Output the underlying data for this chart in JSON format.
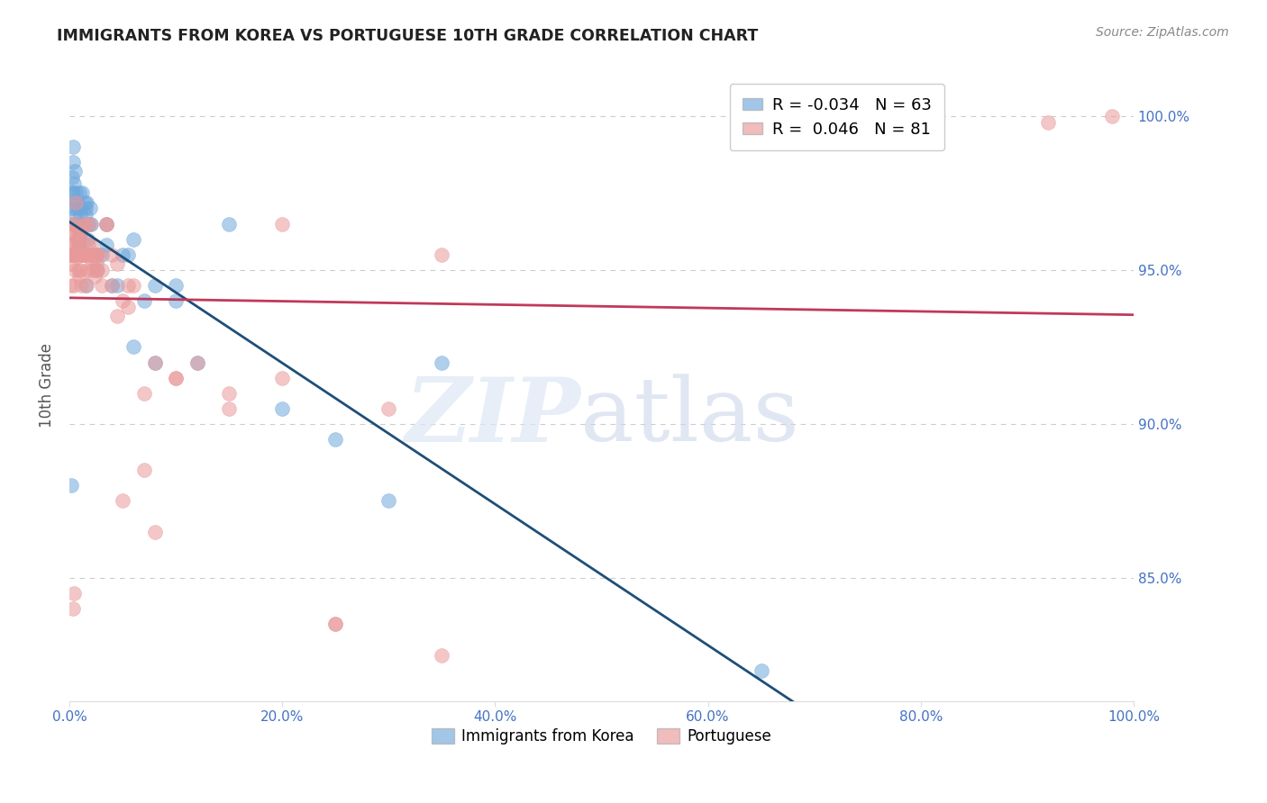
{
  "title": "IMMIGRANTS FROM KOREA VS PORTUGUESE 10TH GRADE CORRELATION CHART",
  "source": "Source: ZipAtlas.com",
  "ylabel": "10th Grade",
  "xlim": [
    0.0,
    100.0
  ],
  "ylim": [
    81.0,
    101.5
  ],
  "yticks": [
    85.0,
    90.0,
    95.0,
    100.0
  ],
  "ytick_labels": [
    "85.0%",
    "90.0%",
    "95.0%",
    "100.0%"
  ],
  "xticks": [
    0,
    20,
    40,
    60,
    80,
    100
  ],
  "xtick_labels": [
    "0.0%",
    "20.0%",
    "40.0%",
    "60.0%",
    "80.0%",
    "100.0%"
  ],
  "blue_R": "-0.034",
  "blue_N": "63",
  "pink_R": "0.046",
  "pink_N": "81",
  "blue_color": "#6fa8dc",
  "pink_color": "#ea9999",
  "blue_line_color": "#1f4e79",
  "pink_line_color": "#c0395a",
  "axis_label_color": "#4472c4",
  "blue_x": [
    0.1,
    0.15,
    0.2,
    0.25,
    0.3,
    0.3,
    0.35,
    0.4,
    0.4,
    0.5,
    0.5,
    0.6,
    0.6,
    0.7,
    0.7,
    0.8,
    0.8,
    0.9,
    0.9,
    1.0,
    1.0,
    1.1,
    1.1,
    1.2,
    1.3,
    1.4,
    1.5,
    1.6,
    1.7,
    1.8,
    1.9,
    2.0,
    2.5,
    3.0,
    3.5,
    4.0,
    5.0,
    5.5,
    6.0,
    7.0,
    8.0,
    10.0,
    12.0,
    15.0,
    20.0,
    25.0,
    30.0,
    35.0,
    0.45,
    0.85,
    1.15,
    1.55,
    2.0,
    2.5,
    3.5,
    4.5,
    6.0,
    8.0,
    10.0,
    0.6,
    1.5,
    65.0,
    0.2
  ],
  "blue_y": [
    95.5,
    97.0,
    97.5,
    98.0,
    99.0,
    97.5,
    98.5,
    97.8,
    96.5,
    98.2,
    97.0,
    97.5,
    96.8,
    97.2,
    96.5,
    97.0,
    96.0,
    97.5,
    95.8,
    96.8,
    96.2,
    97.0,
    95.5,
    97.5,
    96.5,
    97.2,
    96.8,
    97.2,
    96.0,
    96.5,
    97.0,
    96.5,
    95.5,
    95.5,
    95.8,
    94.5,
    95.5,
    95.5,
    92.5,
    94.0,
    92.0,
    94.5,
    92.0,
    96.5,
    90.5,
    89.5,
    87.5,
    92.0,
    95.5,
    95.8,
    95.5,
    94.5,
    95.5,
    95.0,
    96.5,
    94.5,
    96.0,
    94.5,
    94.0,
    97.2,
    97.0,
    82.0,
    88.0
  ],
  "pink_x": [
    0.05,
    0.1,
    0.15,
    0.2,
    0.25,
    0.3,
    0.35,
    0.4,
    0.45,
    0.5,
    0.5,
    0.6,
    0.6,
    0.7,
    0.7,
    0.8,
    0.8,
    0.9,
    0.9,
    1.0,
    1.0,
    1.1,
    1.1,
    1.2,
    1.3,
    1.4,
    1.5,
    1.6,
    1.7,
    1.8,
    1.9,
    2.0,
    2.1,
    2.2,
    2.3,
    2.4,
    2.5,
    2.6,
    2.8,
    3.0,
    3.5,
    4.0,
    4.5,
    5.0,
    5.5,
    6.0,
    7.0,
    8.0,
    10.0,
    12.0,
    15.0,
    20.0,
    25.0,
    30.0,
    0.45,
    0.85,
    1.2,
    1.6,
    2.0,
    2.5,
    3.0,
    3.5,
    4.5,
    5.5,
    7.0,
    10.0,
    15.0,
    25.0,
    35.0,
    0.6,
    1.5,
    2.5,
    4.0,
    20.0,
    35.0,
    92.0,
    98.0,
    5.0,
    8.0,
    0.4,
    0.35
  ],
  "pink_y": [
    95.5,
    94.5,
    95.8,
    95.2,
    96.5,
    95.5,
    96.2,
    95.8,
    94.5,
    96.2,
    95.0,
    96.5,
    95.5,
    95.5,
    96.0,
    96.2,
    95.8,
    95.5,
    94.8,
    96.2,
    95.0,
    96.0,
    94.5,
    95.5,
    95.5,
    96.5,
    95.5,
    95.5,
    95.0,
    95.8,
    96.5,
    95.5,
    95.2,
    95.0,
    95.5,
    94.8,
    95.2,
    95.0,
    95.5,
    94.5,
    96.5,
    95.5,
    93.5,
    94.0,
    93.8,
    94.5,
    88.5,
    92.0,
    91.5,
    92.0,
    91.0,
    91.5,
    83.5,
    90.5,
    95.5,
    95.0,
    95.5,
    94.5,
    95.8,
    95.5,
    95.0,
    96.5,
    95.2,
    94.5,
    91.0,
    91.5,
    90.5,
    83.5,
    82.5,
    97.2,
    96.5,
    95.5,
    94.5,
    96.5,
    95.5,
    99.8,
    100.0,
    87.5,
    86.5,
    84.5,
    84.0
  ]
}
